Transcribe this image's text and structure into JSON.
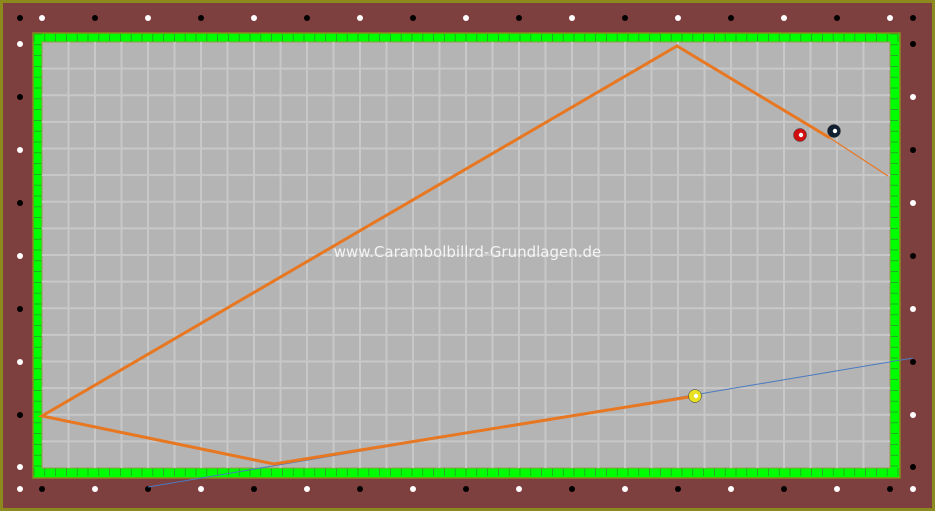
{
  "watermark": "www.Carambolbillrd-Grundlagen.de",
  "colors": {
    "rail": "#7e3f3f",
    "frame": "#8c8a1e",
    "cushion": "#00ff00",
    "cloth": "#b4b4b4",
    "grid": "#c8c8c8",
    "path": "#e87722",
    "aim_line": "#4a7ac0"
  },
  "balls": [
    {
      "name": "cue-ball-yellow",
      "color": "#e8e020"
    },
    {
      "name": "red-ball",
      "color": "#d01010"
    },
    {
      "name": "black-ball",
      "color": "#102030"
    }
  ]
}
